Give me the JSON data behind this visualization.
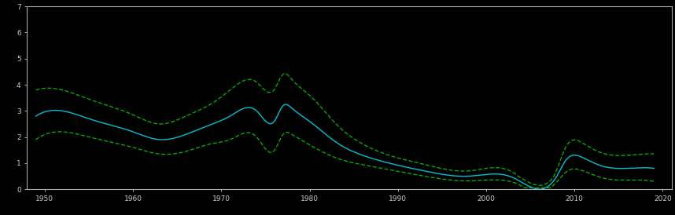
{
  "background_color": "#000000",
  "axes_facecolor": "#000000",
  "spine_color": "#aaaaaa",
  "line_color": "#00c0d0",
  "band_color": "#00bb00",
  "xlim": [
    1948,
    2021
  ],
  "ylim": [
    0,
    7
  ],
  "xticks": [
    1950,
    1960,
    1970,
    1980,
    1990,
    2000,
    2010,
    2020
  ],
  "yticks": [
    0,
    1,
    2,
    3,
    4,
    5,
    6,
    7
  ],
  "tick_color": "#cccccc",
  "figsize": [
    8.58,
    2.74
  ],
  "dpi": 100,
  "center_keypoints": [
    [
      1949,
      2.8
    ],
    [
      1952,
      3.0
    ],
    [
      1955,
      2.7
    ],
    [
      1957,
      2.5
    ],
    [
      1960,
      2.2
    ],
    [
      1963,
      1.9
    ],
    [
      1966,
      2.1
    ],
    [
      1969,
      2.5
    ],
    [
      1971,
      2.8
    ],
    [
      1974,
      3.0
    ],
    [
      1976,
      2.6
    ],
    [
      1977,
      3.2
    ],
    [
      1978,
      3.1
    ],
    [
      1980,
      2.6
    ],
    [
      1983,
      1.8
    ],
    [
      1986,
      1.3
    ],
    [
      1989,
      1.0
    ],
    [
      1993,
      0.7
    ],
    [
      1998,
      0.5
    ],
    [
      2003,
      0.45
    ],
    [
      2008,
      0.5
    ],
    [
      2009,
      1.1
    ],
    [
      2011,
      1.2
    ],
    [
      2013,
      0.9
    ],
    [
      2016,
      0.8
    ],
    [
      2019,
      0.8
    ]
  ],
  "upper_extra": [
    [
      1949,
      1.0
    ],
    [
      1952,
      0.8
    ],
    [
      1955,
      0.75
    ],
    [
      1960,
      0.65
    ],
    [
      1963,
      0.6
    ],
    [
      1966,
      0.7
    ],
    [
      1969,
      0.8
    ],
    [
      1971,
      1.0
    ],
    [
      1974,
      1.1
    ],
    [
      1977,
      1.2
    ],
    [
      1978,
      1.1
    ],
    [
      1980,
      1.0
    ],
    [
      1983,
      0.7
    ],
    [
      1989,
      0.3
    ],
    [
      1993,
      0.25
    ],
    [
      1998,
      0.2
    ],
    [
      2003,
      0.2
    ],
    [
      2008,
      0.25
    ],
    [
      2009,
      0.5
    ],
    [
      2011,
      0.55
    ],
    [
      2013,
      0.5
    ],
    [
      2016,
      0.5
    ],
    [
      2019,
      0.55
    ]
  ],
  "lower_extra": [
    [
      1949,
      0.9
    ],
    [
      1952,
      0.8
    ],
    [
      1955,
      0.7
    ],
    [
      1960,
      0.6
    ],
    [
      1963,
      0.55
    ],
    [
      1966,
      0.65
    ],
    [
      1969,
      0.75
    ],
    [
      1971,
      0.9
    ],
    [
      1974,
      1.0
    ],
    [
      1977,
      1.1
    ],
    [
      1978,
      1.0
    ],
    [
      1980,
      0.9
    ],
    [
      1983,
      0.6
    ],
    [
      1989,
      0.25
    ],
    [
      1993,
      0.2
    ],
    [
      1998,
      0.18
    ],
    [
      2003,
      0.18
    ],
    [
      2008,
      0.22
    ],
    [
      2009,
      0.45
    ],
    [
      2011,
      0.5
    ],
    [
      2013,
      0.45
    ],
    [
      2016,
      0.45
    ],
    [
      2019,
      0.5
    ]
  ]
}
